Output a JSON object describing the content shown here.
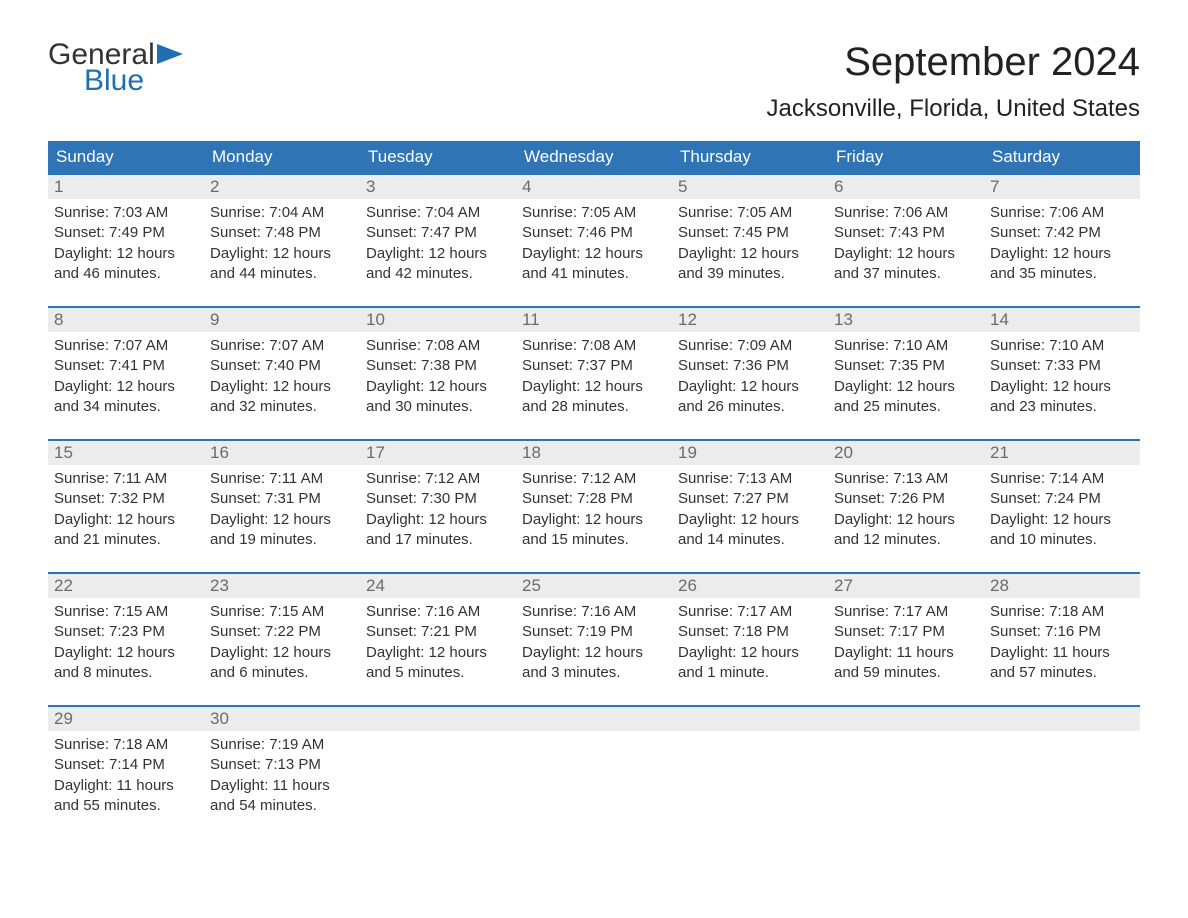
{
  "logo": {
    "text_top": "General",
    "text_bottom": "Blue",
    "brand_color": "#1f6fb2"
  },
  "title": "September 2024",
  "location": "Jacksonville, Florida, United States",
  "colors": {
    "header_bg": "#2f74b5",
    "header_text": "#ffffff",
    "daynum_bg": "#ececec",
    "daynum_text": "#6b6b6b",
    "body_text": "#333333",
    "row_border": "#2f74b5",
    "page_bg": "#ffffff"
  },
  "day_headers": [
    "Sunday",
    "Monday",
    "Tuesday",
    "Wednesday",
    "Thursday",
    "Friday",
    "Saturday"
  ],
  "weeks": [
    [
      {
        "num": "1",
        "sunrise": "Sunrise: 7:03 AM",
        "sunset": "Sunset: 7:49 PM",
        "daylight": "Daylight: 12 hours and 46 minutes."
      },
      {
        "num": "2",
        "sunrise": "Sunrise: 7:04 AM",
        "sunset": "Sunset: 7:48 PM",
        "daylight": "Daylight: 12 hours and 44 minutes."
      },
      {
        "num": "3",
        "sunrise": "Sunrise: 7:04 AM",
        "sunset": "Sunset: 7:47 PM",
        "daylight": "Daylight: 12 hours and 42 minutes."
      },
      {
        "num": "4",
        "sunrise": "Sunrise: 7:05 AM",
        "sunset": "Sunset: 7:46 PM",
        "daylight": "Daylight: 12 hours and 41 minutes."
      },
      {
        "num": "5",
        "sunrise": "Sunrise: 7:05 AM",
        "sunset": "Sunset: 7:45 PM",
        "daylight": "Daylight: 12 hours and 39 minutes."
      },
      {
        "num": "6",
        "sunrise": "Sunrise: 7:06 AM",
        "sunset": "Sunset: 7:43 PM",
        "daylight": "Daylight: 12 hours and 37 minutes."
      },
      {
        "num": "7",
        "sunrise": "Sunrise: 7:06 AM",
        "sunset": "Sunset: 7:42 PM",
        "daylight": "Daylight: 12 hours and 35 minutes."
      }
    ],
    [
      {
        "num": "8",
        "sunrise": "Sunrise: 7:07 AM",
        "sunset": "Sunset: 7:41 PM",
        "daylight": "Daylight: 12 hours and 34 minutes."
      },
      {
        "num": "9",
        "sunrise": "Sunrise: 7:07 AM",
        "sunset": "Sunset: 7:40 PM",
        "daylight": "Daylight: 12 hours and 32 minutes."
      },
      {
        "num": "10",
        "sunrise": "Sunrise: 7:08 AM",
        "sunset": "Sunset: 7:38 PM",
        "daylight": "Daylight: 12 hours and 30 minutes."
      },
      {
        "num": "11",
        "sunrise": "Sunrise: 7:08 AM",
        "sunset": "Sunset: 7:37 PM",
        "daylight": "Daylight: 12 hours and 28 minutes."
      },
      {
        "num": "12",
        "sunrise": "Sunrise: 7:09 AM",
        "sunset": "Sunset: 7:36 PM",
        "daylight": "Daylight: 12 hours and 26 minutes."
      },
      {
        "num": "13",
        "sunrise": "Sunrise: 7:10 AM",
        "sunset": "Sunset: 7:35 PM",
        "daylight": "Daylight: 12 hours and 25 minutes."
      },
      {
        "num": "14",
        "sunrise": "Sunrise: 7:10 AM",
        "sunset": "Sunset: 7:33 PM",
        "daylight": "Daylight: 12 hours and 23 minutes."
      }
    ],
    [
      {
        "num": "15",
        "sunrise": "Sunrise: 7:11 AM",
        "sunset": "Sunset: 7:32 PM",
        "daylight": "Daylight: 12 hours and 21 minutes."
      },
      {
        "num": "16",
        "sunrise": "Sunrise: 7:11 AM",
        "sunset": "Sunset: 7:31 PM",
        "daylight": "Daylight: 12 hours and 19 minutes."
      },
      {
        "num": "17",
        "sunrise": "Sunrise: 7:12 AM",
        "sunset": "Sunset: 7:30 PM",
        "daylight": "Daylight: 12 hours and 17 minutes."
      },
      {
        "num": "18",
        "sunrise": "Sunrise: 7:12 AM",
        "sunset": "Sunset: 7:28 PM",
        "daylight": "Daylight: 12 hours and 15 minutes."
      },
      {
        "num": "19",
        "sunrise": "Sunrise: 7:13 AM",
        "sunset": "Sunset: 7:27 PM",
        "daylight": "Daylight: 12 hours and 14 minutes."
      },
      {
        "num": "20",
        "sunrise": "Sunrise: 7:13 AM",
        "sunset": "Sunset: 7:26 PM",
        "daylight": "Daylight: 12 hours and 12 minutes."
      },
      {
        "num": "21",
        "sunrise": "Sunrise: 7:14 AM",
        "sunset": "Sunset: 7:24 PM",
        "daylight": "Daylight: 12 hours and 10 minutes."
      }
    ],
    [
      {
        "num": "22",
        "sunrise": "Sunrise: 7:15 AM",
        "sunset": "Sunset: 7:23 PM",
        "daylight": "Daylight: 12 hours and 8 minutes."
      },
      {
        "num": "23",
        "sunrise": "Sunrise: 7:15 AM",
        "sunset": "Sunset: 7:22 PM",
        "daylight": "Daylight: 12 hours and 6 minutes."
      },
      {
        "num": "24",
        "sunrise": "Sunrise: 7:16 AM",
        "sunset": "Sunset: 7:21 PM",
        "daylight": "Daylight: 12 hours and 5 minutes."
      },
      {
        "num": "25",
        "sunrise": "Sunrise: 7:16 AM",
        "sunset": "Sunset: 7:19 PM",
        "daylight": "Daylight: 12 hours and 3 minutes."
      },
      {
        "num": "26",
        "sunrise": "Sunrise: 7:17 AM",
        "sunset": "Sunset: 7:18 PM",
        "daylight": "Daylight: 12 hours and 1 minute."
      },
      {
        "num": "27",
        "sunrise": "Sunrise: 7:17 AM",
        "sunset": "Sunset: 7:17 PM",
        "daylight": "Daylight: 11 hours and 59 minutes."
      },
      {
        "num": "28",
        "sunrise": "Sunrise: 7:18 AM",
        "sunset": "Sunset: 7:16 PM",
        "daylight": "Daylight: 11 hours and 57 minutes."
      }
    ],
    [
      {
        "num": "29",
        "sunrise": "Sunrise: 7:18 AM",
        "sunset": "Sunset: 7:14 PM",
        "daylight": "Daylight: 11 hours and 55 minutes."
      },
      {
        "num": "30",
        "sunrise": "Sunrise: 7:19 AM",
        "sunset": "Sunset: 7:13 PM",
        "daylight": "Daylight: 11 hours and 54 minutes."
      },
      {
        "empty": true
      },
      {
        "empty": true
      },
      {
        "empty": true
      },
      {
        "empty": true
      },
      {
        "empty": true
      }
    ]
  ]
}
